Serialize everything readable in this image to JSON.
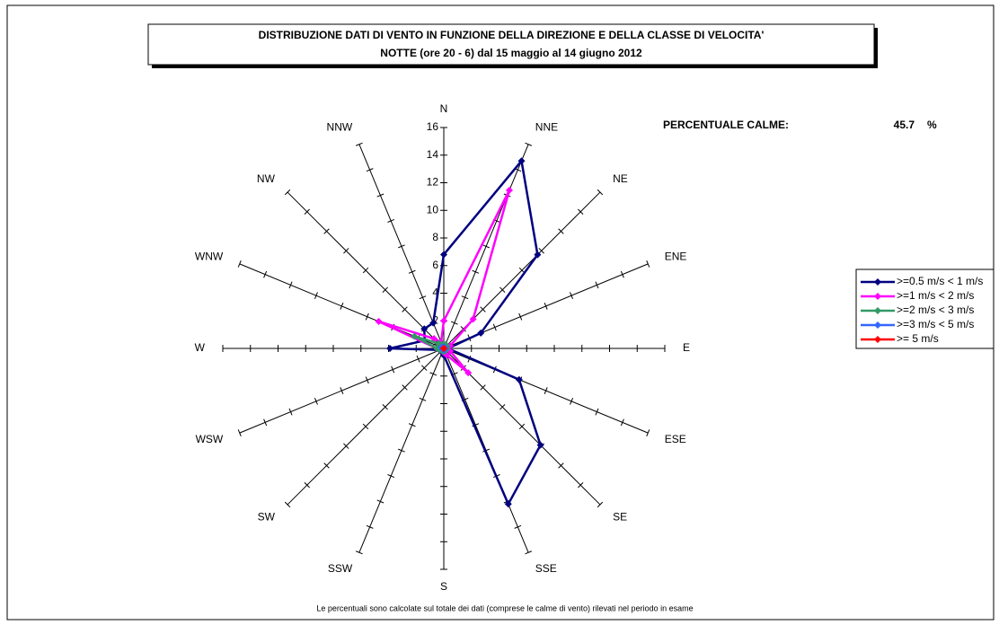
{
  "chart_data": {
    "type": "radar",
    "title": "DISTRIBUZIONE DATI DI VENTO IN FUNZIONE DELLA DIREZIONE E DELLA CLASSE DI VELOCITA'",
    "subtitle": "NOTTE (ore 20 - 6)  dal 15 maggio al 14 giugno 2012",
    "calm_label": "PERCENTUALE CALME:",
    "calm_value": 45.7,
    "calm_unit": "%",
    "footnote": "Le percentuali sono calcolate sul totale dei dati (comprese le calme di vento) rilevati nel periodo in esame",
    "categories": [
      "N",
      "NNE",
      "NE",
      "ENE",
      "E",
      "ESE",
      "SE",
      "SSE",
      "S",
      "SSW",
      "SW",
      "WSW",
      "W",
      "WNW",
      "NW",
      "NNW"
    ],
    "ylim": [
      0,
      16
    ],
    "yticks": [
      0,
      2,
      4,
      6,
      8,
      10,
      12,
      14,
      16
    ],
    "series": [
      {
        "name": ">=0.5 m/s < 1 m/s",
        "color": "#000080",
        "values": [
          6.8,
          14.7,
          9.6,
          2.9,
          0.3,
          5.9,
          9.9,
          12.2,
          0.5,
          0.3,
          0.3,
          0.3,
          3.9,
          1.5,
          2.0,
          2.0
        ]
      },
      {
        "name": ">=1 m/s < 2 m/s",
        "color": "#ff00ff",
        "values": [
          2.0,
          12.4,
          3.0,
          0.5,
          0.3,
          0.5,
          2.5,
          0.5,
          0.3,
          0.2,
          0.2,
          0.3,
          0.5,
          5.1,
          1.0,
          0.5
        ]
      },
      {
        "name": ">=2 m/s < 3 m/s",
        "color": "#339966",
        "values": [
          0.3,
          0.3,
          0.3,
          0.2,
          0.2,
          0.2,
          0.2,
          0.2,
          0.2,
          0.2,
          0.2,
          0.3,
          0.5,
          2.3,
          0.5,
          0.3
        ]
      },
      {
        "name": ">=3 m/s < 5 m/s",
        "color": "#3366ff",
        "values": [
          0.1,
          0.1,
          0.1,
          0.1,
          0.1,
          0.1,
          0.1,
          0.1,
          0.1,
          0.1,
          0.1,
          0.1,
          0.1,
          0.2,
          0.1,
          0.1
        ]
      },
      {
        "name": ">= 5 m/s",
        "color": "#ff0000",
        "values": [
          0,
          0,
          0,
          0,
          0,
          0,
          0,
          0,
          0,
          0,
          0,
          0,
          0,
          0,
          0,
          0
        ]
      }
    ]
  }
}
